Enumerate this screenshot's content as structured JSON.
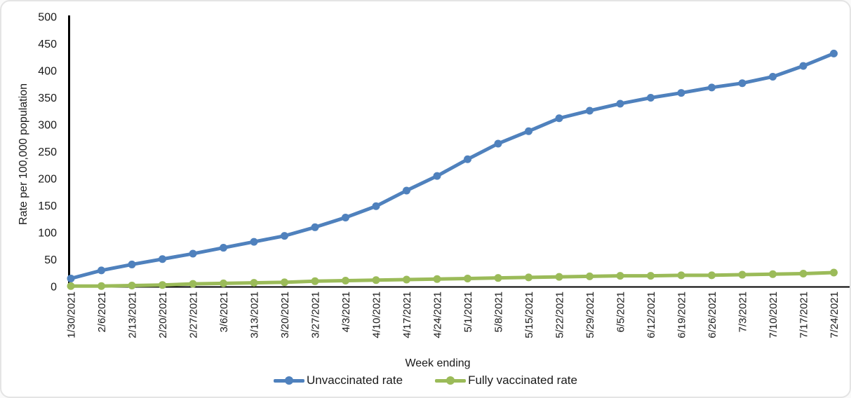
{
  "chart_data": {
    "type": "line",
    "title": "",
    "xlabel": "Week ending",
    "ylabel": "Rate per 100,000 population",
    "ylim": [
      0,
      500
    ],
    "yticks": [
      0,
      50,
      100,
      150,
      200,
      250,
      300,
      350,
      400,
      450,
      500
    ],
    "grid": false,
    "legend_position": "bottom",
    "x_tick_rotation_degrees": 90,
    "categories": [
      "1/30/2021",
      "2/6/2021",
      "2/13/2021",
      "2/20/2021",
      "2/27/2021",
      "3/6/2021",
      "3/13/2021",
      "3/20/2021",
      "3/27/2021",
      "4/3/2021",
      "4/10/2021",
      "4/17/2021",
      "4/24/2021",
      "5/1/2021",
      "5/8/2021",
      "5/15/2021",
      "5/22/2021",
      "5/29/2021",
      "6/5/2021",
      "6/12/2021",
      "6/19/2021",
      "6/26/2021",
      "7/3/2021",
      "7/10/2021",
      "7/17/2021",
      "7/24/2021"
    ],
    "series": [
      {
        "name": "Unvaccinated rate",
        "color": "#4F81BD",
        "values": [
          15,
          30,
          41,
          51,
          61,
          72,
          83,
          94,
          110,
          128,
          149,
          178,
          205,
          236,
          265,
          288,
          312,
          326,
          339,
          350,
          359,
          369,
          377,
          389,
          409,
          432
        ]
      },
      {
        "name": "Fully vaccinated rate",
        "color": "#9BBB59",
        "values": [
          1,
          1,
          2,
          3,
          5,
          6,
          7,
          8,
          10,
          11,
          12,
          13,
          14,
          15,
          16,
          17,
          18,
          19,
          20,
          20,
          21,
          21,
          22,
          23,
          24,
          26
        ]
      }
    ]
  },
  "styles": {
    "axis_color": "#000000",
    "text_color": "#1a1a1a",
    "card_border_color": "#e4e4e4",
    "background_color": "#ffffff"
  }
}
